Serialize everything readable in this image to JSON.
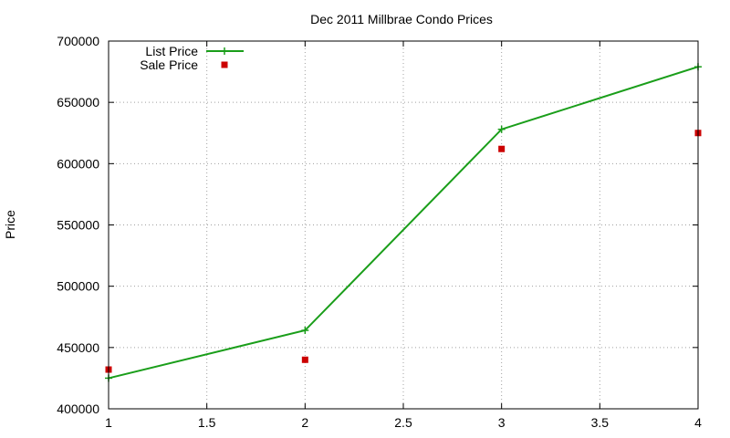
{
  "chart_data": {
    "type": "line",
    "title": "Dec 2011 Millbrae Condo Prices",
    "xlabel": "",
    "ylabel": "Price",
    "xlim": [
      1,
      4
    ],
    "ylim": [
      400000,
      700000
    ],
    "x_ticks": [
      1,
      1.5,
      2,
      2.5,
      3,
      3.5,
      4
    ],
    "x_tick_labels": [
      "1",
      "1.5",
      "2",
      "2.5",
      "3",
      "3.5",
      "4"
    ],
    "y_ticks": [
      400000,
      450000,
      500000,
      550000,
      600000,
      650000,
      700000
    ],
    "y_tick_labels": [
      "400000",
      "450000",
      "500000",
      "550000",
      "600000",
      "650000",
      "700000"
    ],
    "grid": true,
    "legend_position": "top-left",
    "series": [
      {
        "name": "List Price",
        "style": "line-with-plus-markers",
        "color": "#1a9e1a",
        "x": [
          1,
          2,
          3,
          4
        ],
        "values": [
          425000,
          464000,
          628000,
          679000
        ]
      },
      {
        "name": "Sale Price",
        "style": "square-markers",
        "color": "#cc0000",
        "x": [
          1,
          2,
          3,
          4
        ],
        "values": [
          432000,
          440000,
          612000,
          625000
        ]
      }
    ]
  }
}
